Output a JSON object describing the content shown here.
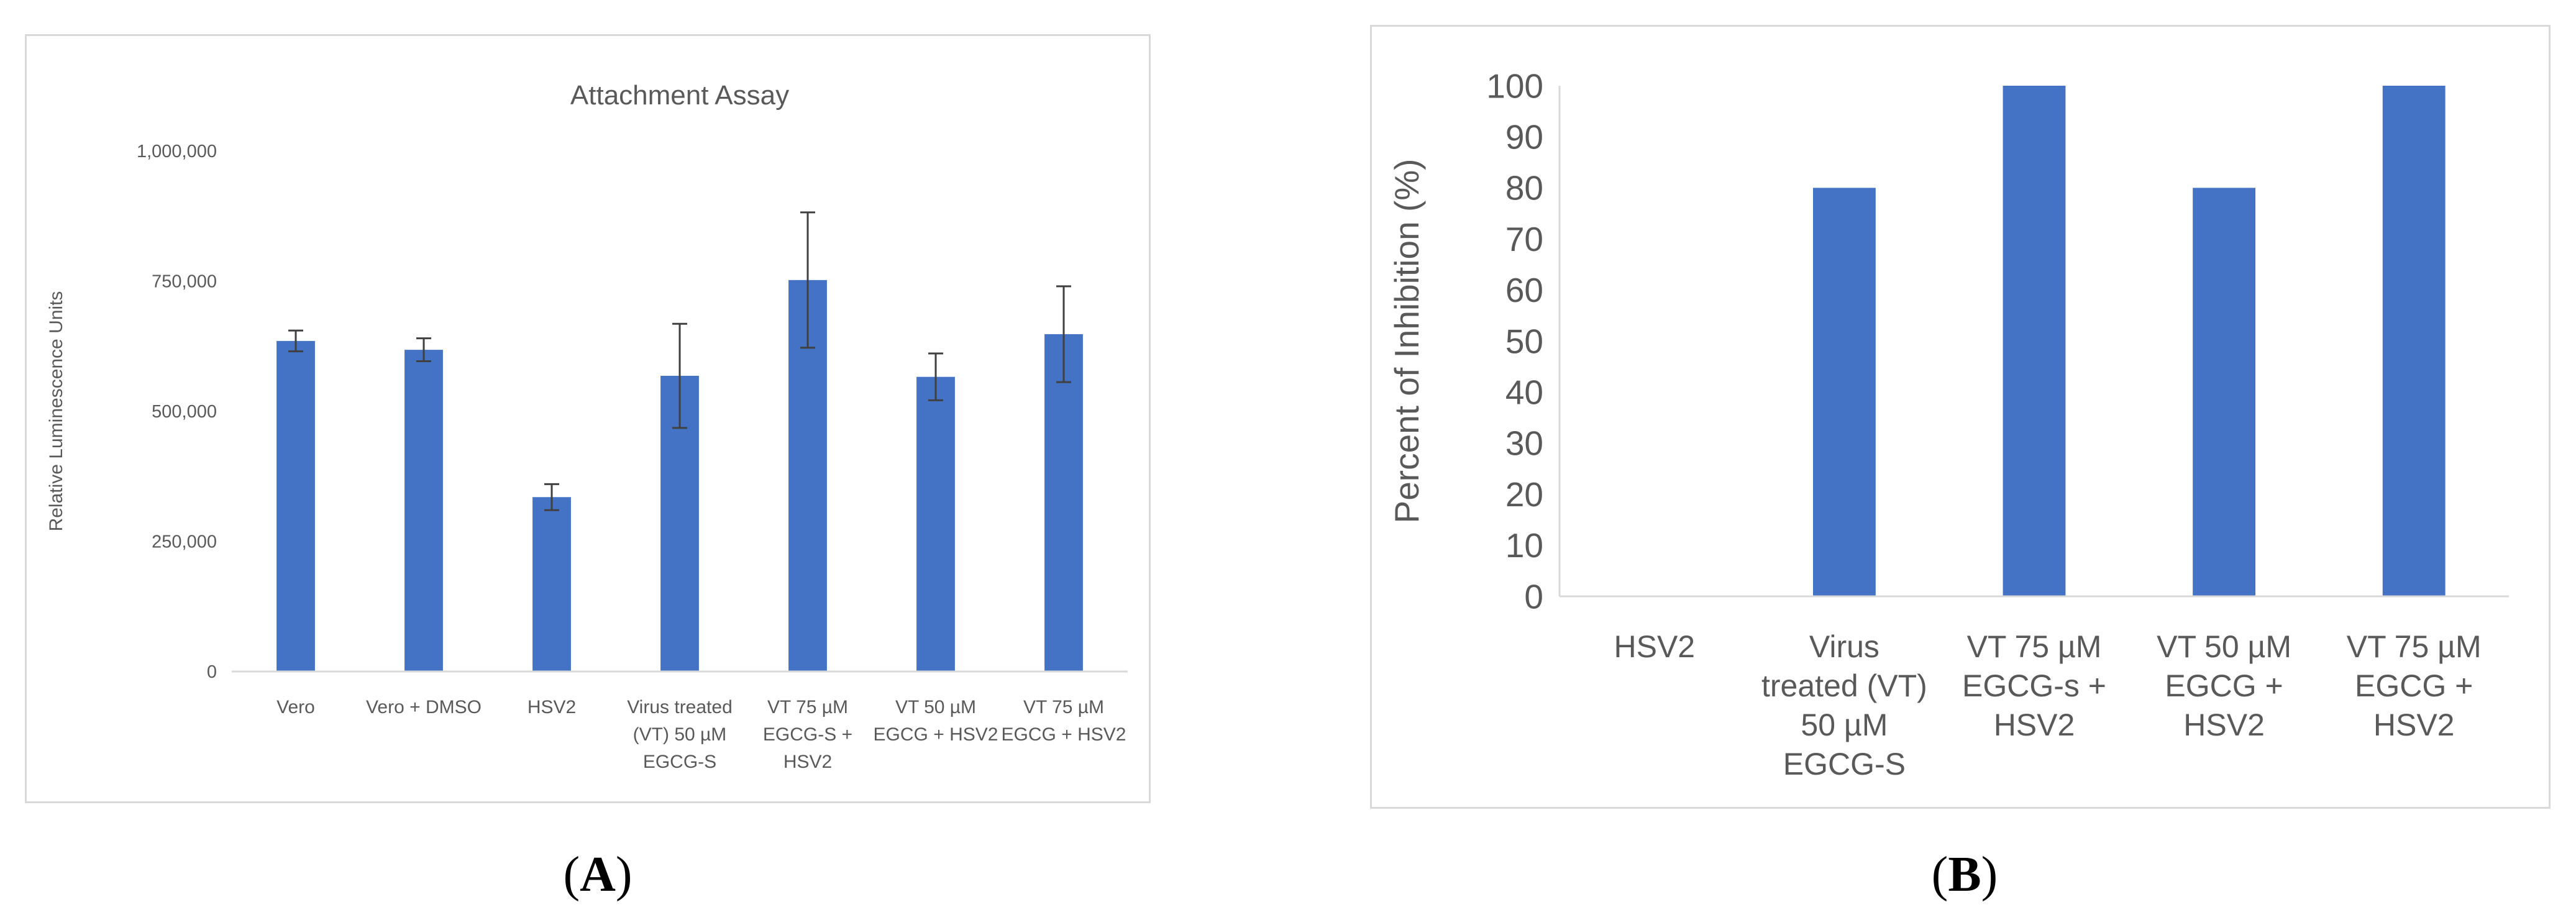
{
  "panels": [
    {
      "label_open": "(",
      "label_letter": "A",
      "label_close": ")"
    },
    {
      "label_open": "(",
      "label_letter": "B",
      "label_close": ")"
    }
  ],
  "colors": {
    "bar": "#4472c4",
    "axis": "#d9d9d9",
    "text": "#595959",
    "error_bar": "#404040"
  },
  "chart_data": [
    {
      "type": "bar",
      "title": "Attachment Assay",
      "xlabel": "",
      "ylabel": "Relative Luminescence Units",
      "ylim": [
        0,
        1000000
      ],
      "yticks": [
        0,
        250000,
        500000,
        750000,
        1000000
      ],
      "ytick_labels": [
        "0",
        "250,000",
        "500,000",
        "750,000",
        "1,000,000"
      ],
      "grid": false,
      "categories": [
        [
          "Vero"
        ],
        [
          "Vero + DMSO"
        ],
        [
          "HSV2"
        ],
        [
          "Virus treated",
          "(VT) 50 µM",
          "EGCG-S"
        ],
        [
          "VT 75 µM",
          "EGCG-S +",
          "HSV2"
        ],
        [
          "VT 50 µM",
          "EGCG + HSV2"
        ],
        [
          "VT 75 µM",
          "EGCG + HSV2"
        ]
      ],
      "values": [
        635000,
        618000,
        335000,
        568000,
        752000,
        566000,
        648000
      ],
      "error": [
        20000,
        22000,
        25000,
        100000,
        130000,
        45000,
        92000
      ]
    },
    {
      "type": "bar",
      "title": "",
      "xlabel": "",
      "ylabel": "Percent of Inhibition (%)",
      "ylim": [
        0,
        100
      ],
      "yticks": [
        0,
        10,
        20,
        30,
        40,
        50,
        60,
        70,
        80,
        90,
        100
      ],
      "ytick_labels": [
        "0",
        "10",
        "20",
        "30",
        "40",
        "50",
        "60",
        "70",
        "80",
        "90",
        "100"
      ],
      "grid": false,
      "categories": [
        [
          "HSV2"
        ],
        [
          "Virus",
          "treated (VT)",
          "50 µM",
          "EGCG-S"
        ],
        [
          "VT 75 µM",
          "EGCG-s +",
          "HSV2"
        ],
        [
          "VT 50 µM",
          "EGCG +",
          "HSV2"
        ],
        [
          "VT 75 µM",
          "EGCG +",
          "HSV2"
        ]
      ],
      "values": [
        0,
        80,
        100,
        80,
        100
      ]
    }
  ]
}
